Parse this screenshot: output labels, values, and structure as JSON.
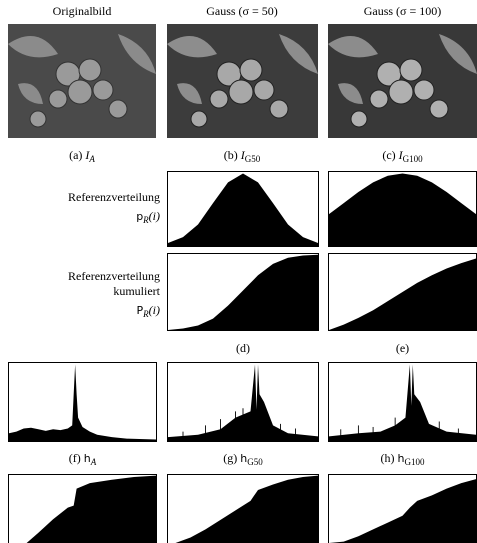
{
  "columns": [
    {
      "title": "Originalbild",
      "image_caption": {
        "letter": "(a)",
        "symbol": "I",
        "subscript": "A"
      },
      "histogram_caption": {
        "letter": "(f)",
        "symbol": "h",
        "subscript": "A"
      }
    },
    {
      "title": "Gauss (σ = 50)",
      "image_caption": {
        "letter": "(b)",
        "symbol": "I",
        "subscript": "G50"
      },
      "histogram_caption": {
        "letter": "(g)",
        "symbol": "h",
        "subscript": "G50"
      }
    },
    {
      "title": "Gauss (σ = 100)",
      "image_caption": {
        "letter": "(c)",
        "symbol": "I",
        "subscript": "G100"
      },
      "histogram_caption": {
        "letter": "(h)",
        "symbol": "h",
        "subscript": "G100"
      }
    }
  ],
  "reference": {
    "density_label": "Referenzverteilung",
    "density_symbol": {
      "symbol": "p",
      "subscript": "R",
      "argument": "(i)"
    },
    "cumulative_label": [
      "Referenzverteilung",
      "kumuliert"
    ],
    "cumulative_symbol": {
      "symbol": "P",
      "subscript": "R",
      "argument": "(i)"
    },
    "captions": [
      "(d)",
      "(e)"
    ]
  }
}
